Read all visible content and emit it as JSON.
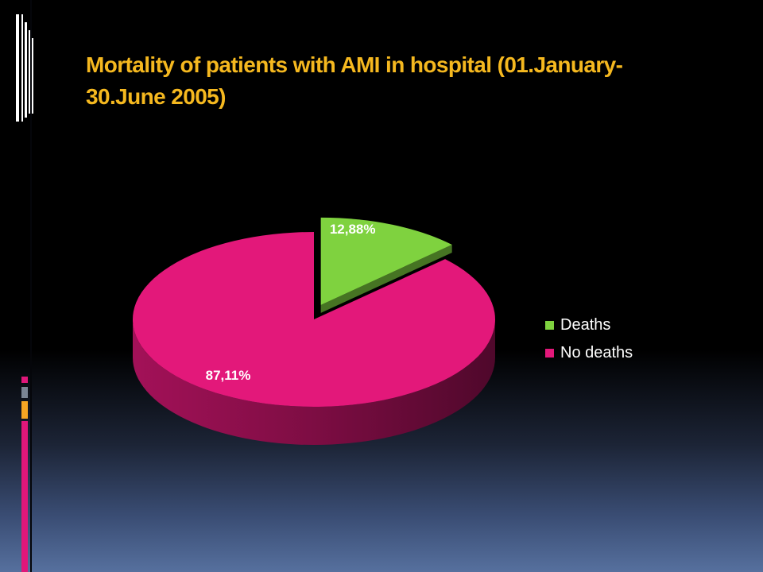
{
  "slide": {
    "title": "Mortality of patients with AMI in hospital (01.January-30.June 2005)",
    "title_line1": "Mortality of patients with AMI in hospital (01.January-",
    "title_line2": "30.June 2005)",
    "colors": {
      "title": "#f5b81f",
      "accent_pink": "#e0177a",
      "accent_gray": "#7a8594",
      "accent_orange": "#f6a623"
    },
    "decoration_icon": "vertical-line-pattern-icon"
  },
  "chart_data": {
    "type": "pie",
    "style": "3d-exploded",
    "title": "",
    "slices": [
      {
        "name": "Deaths",
        "value": 12.88,
        "label": "12,88%",
        "color": "#7fd23f",
        "exploded": true
      },
      {
        "name": "No deaths",
        "value": 87.11,
        "label": "87,11%",
        "color": "#e3187a",
        "exploded": false
      }
    ],
    "legend": {
      "position": "right",
      "entries": [
        "Deaths",
        "No deaths"
      ]
    }
  }
}
